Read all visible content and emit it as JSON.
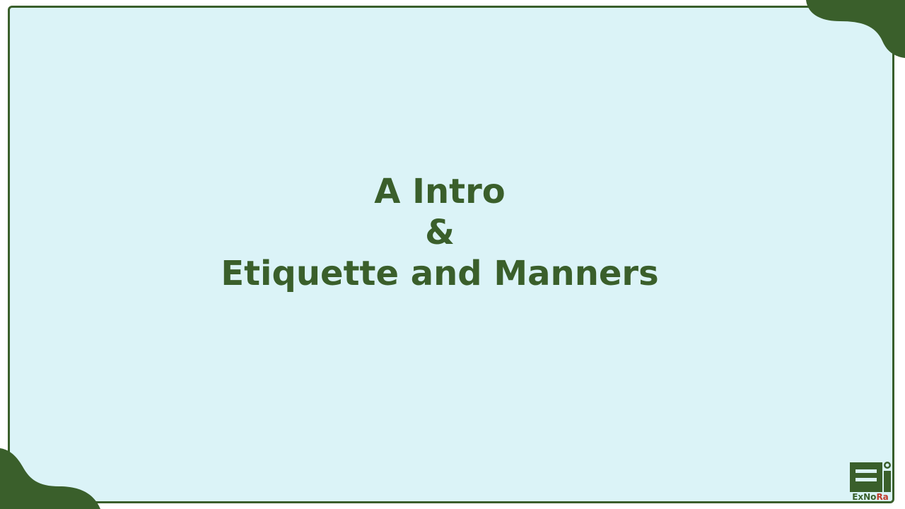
{
  "slide": {
    "title_line1": "A Intro",
    "title_line2": "&",
    "title_line3": "Etiquette and Manners"
  },
  "logo": {
    "part1": "Ex",
    "part2": "No",
    "part3": "Ra"
  },
  "colors": {
    "accent": "#3a5f2b",
    "background": "#dbf3f7",
    "logo_red": "#c0392b"
  }
}
